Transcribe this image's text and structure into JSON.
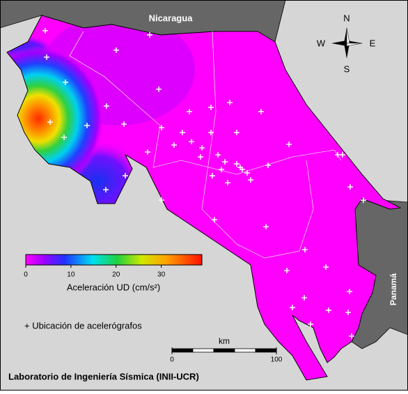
{
  "map": {
    "labels": {
      "north_country": "Nicaragua",
      "south_country": "Panamá"
    },
    "compass": {
      "n": "N",
      "s": "S",
      "w": "W",
      "e": "E"
    },
    "colorbar": {
      "title": "Aceleración UD (cm/s²)",
      "lim": [
        0,
        39
      ],
      "ticks": [
        0,
        10,
        20,
        30
      ]
    },
    "station_legend": "+ Ubicación de acelerógrafos",
    "scale_bar": {
      "unit": "km",
      "ticks": [
        0,
        100
      ]
    },
    "credit": "Laboratorio de Ingeniería Sísmica (INII-UCR)"
  }
}
